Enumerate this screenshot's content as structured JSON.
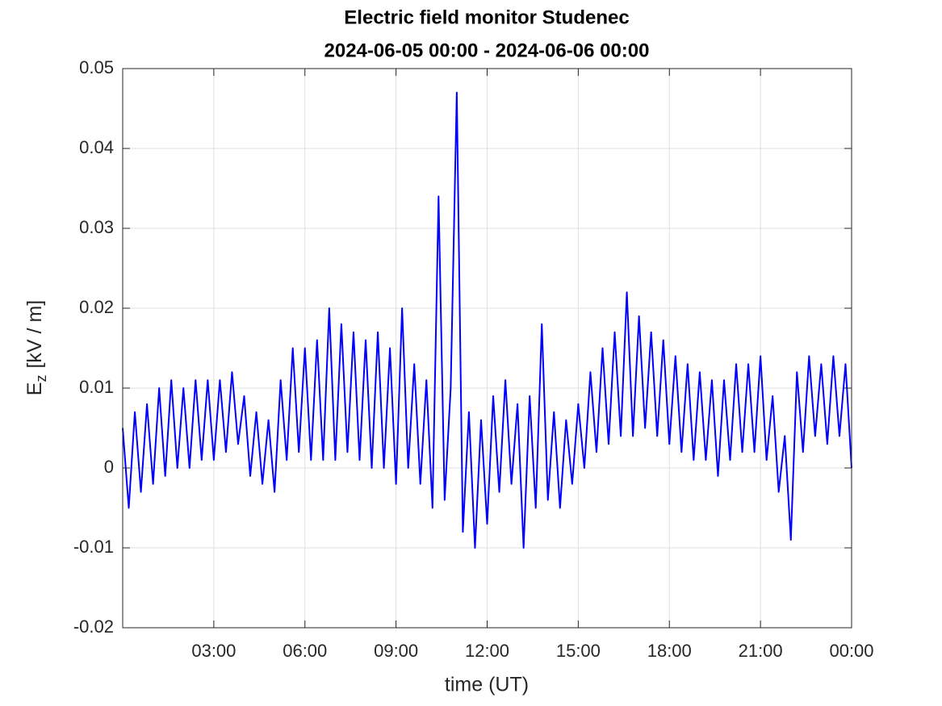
{
  "chart_data": {
    "type": "line",
    "title": "Electric field monitor Studenec",
    "subtitle": "2024-06-05 00:00 - 2024-06-06 00:00",
    "xlabel": "time (UT)",
    "ylabel": {
      "symbol": "E",
      "subscript": "z",
      "unit": "[kV / m]"
    },
    "x": [
      0,
      0.2,
      0.4,
      0.6,
      0.8,
      1,
      1.2,
      1.4,
      1.6,
      1.8,
      2,
      2.2,
      2.4,
      2.6,
      2.8,
      3,
      3.2,
      3.4,
      3.6,
      3.8,
      4,
      4.2,
      4.4,
      4.6,
      4.8,
      5,
      5.2,
      5.4,
      5.6,
      5.8,
      6,
      6.2,
      6.4,
      6.6,
      6.8,
      7,
      7.2,
      7.4,
      7.6,
      7.8,
      8,
      8.2,
      8.4,
      8.6,
      8.8,
      9,
      9.2,
      9.4,
      9.6,
      9.8,
      10,
      10.2,
      10.4,
      10.6,
      10.8,
      11,
      11.2,
      11.4,
      11.6,
      11.8,
      12,
      12.2,
      12.4,
      12.6,
      12.8,
      13,
      13.2,
      13.4,
      13.6,
      13.8,
      14,
      14.2,
      14.4,
      14.6,
      14.8,
      15,
      15.2,
      15.4,
      15.6,
      15.8,
      16,
      16.2,
      16.4,
      16.6,
      16.8,
      17,
      17.2,
      17.4,
      17.6,
      17.8,
      18,
      18.2,
      18.4,
      18.6,
      18.8,
      19,
      19.2,
      19.4,
      19.6,
      19.8,
      20,
      20.2,
      20.4,
      20.6,
      20.8,
      21,
      21.2,
      21.4,
      21.6,
      21.8,
      22,
      22.2,
      22.4,
      22.6,
      22.8,
      23,
      23.2,
      23.4,
      23.6,
      23.8,
      24
    ],
    "series": [
      {
        "color": "#0000ff",
        "values": [
          0.005,
          -0.005,
          0.007,
          -0.003,
          0.008,
          -0.002,
          0.01,
          -0.001,
          0.011,
          0.0,
          0.01,
          0.0,
          0.011,
          0.001,
          0.011,
          0.001,
          0.011,
          0.002,
          0.012,
          0.003,
          0.009,
          -0.001,
          0.007,
          -0.002,
          0.006,
          -0.003,
          0.011,
          0.001,
          0.015,
          0.002,
          0.015,
          0.001,
          0.016,
          0.001,
          0.02,
          0.001,
          0.018,
          0.002,
          0.017,
          0.001,
          0.016,
          0.0,
          0.017,
          0.0,
          0.015,
          -0.002,
          0.02,
          0.0,
          0.013,
          -0.002,
          0.011,
          -0.005,
          0.034,
          -0.004,
          0.01,
          0.047,
          -0.008,
          0.007,
          -0.01,
          0.006,
          -0.007,
          0.009,
          -0.003,
          0.011,
          -0.002,
          0.008,
          -0.01,
          0.009,
          -0.005,
          0.018,
          -0.004,
          0.007,
          -0.005,
          0.006,
          -0.002,
          0.008,
          0.0,
          0.012,
          0.002,
          0.015,
          0.003,
          0.017,
          0.004,
          0.022,
          0.004,
          0.019,
          0.005,
          0.017,
          0.004,
          0.016,
          0.003,
          0.014,
          0.002,
          0.013,
          0.001,
          0.012,
          0.001,
          0.011,
          -0.001,
          0.011,
          0.001,
          0.013,
          0.002,
          0.013,
          0.002,
          0.014,
          0.001,
          0.009,
          -0.003,
          0.004,
          -0.009,
          0.012,
          0.002,
          0.014,
          0.004,
          0.013,
          0.003,
          0.014,
          0.004,
          0.013,
          0.0
        ]
      }
    ],
    "xlim": [
      0,
      24
    ],
    "xticks": [
      {
        "value": 3,
        "label": "03:00"
      },
      {
        "value": 6,
        "label": "06:00"
      },
      {
        "value": 9,
        "label": "09:00"
      },
      {
        "value": 12,
        "label": "12:00"
      },
      {
        "value": 15,
        "label": "15:00"
      },
      {
        "value": 18,
        "label": "18:00"
      },
      {
        "value": 21,
        "label": "21:00"
      },
      {
        "value": 24,
        "label": "00:00"
      }
    ],
    "ylim": [
      -0.02,
      0.05
    ],
    "yticks": [
      -0.02,
      -0.01,
      0,
      0.01,
      0.02,
      0.03,
      0.04,
      0.05
    ],
    "grid": true
  }
}
